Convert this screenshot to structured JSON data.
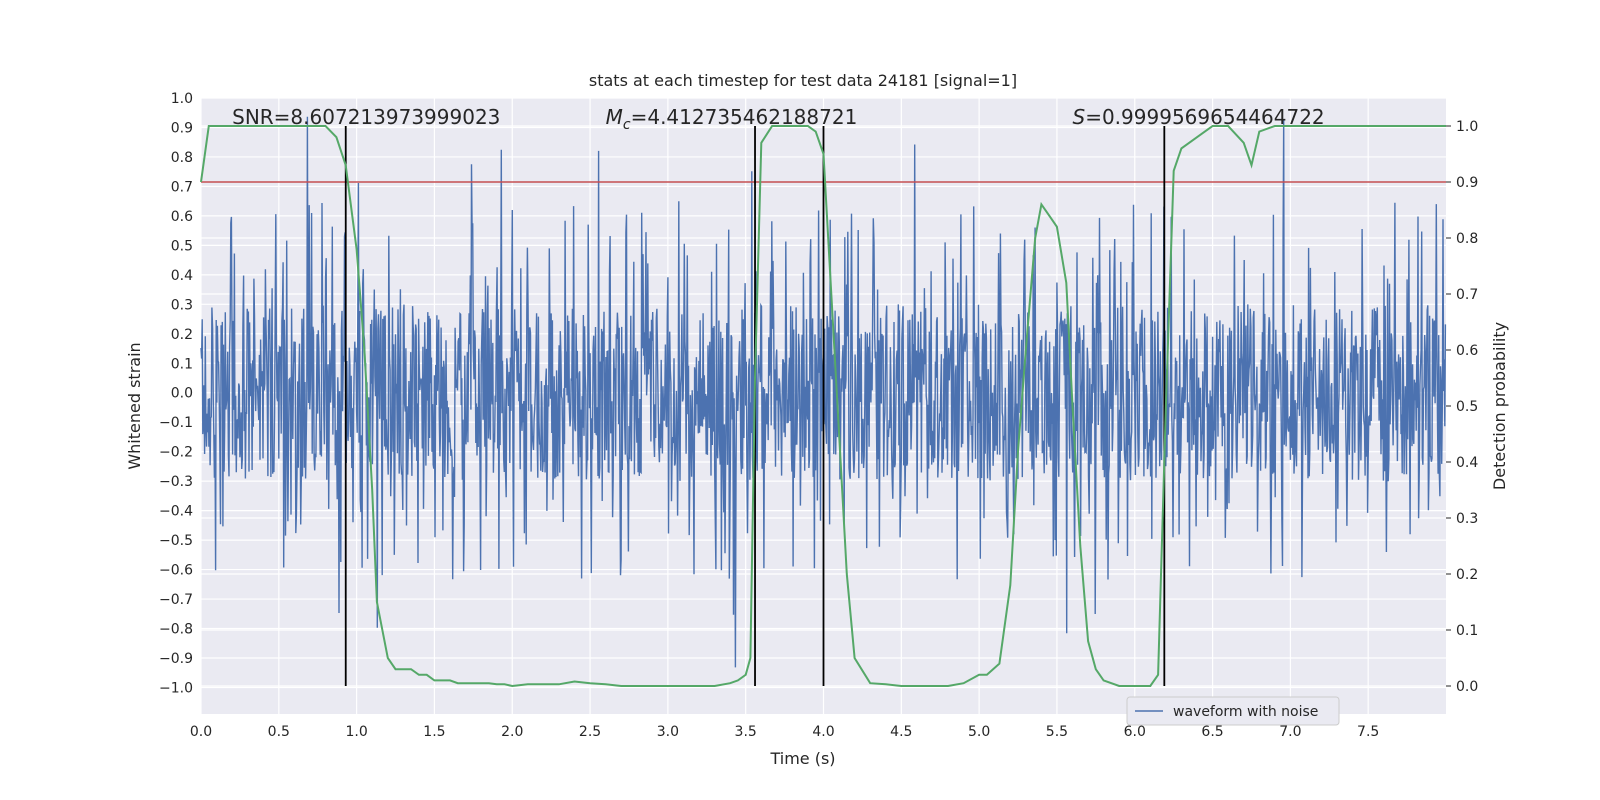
{
  "chart_data": {
    "type": "line",
    "title": "stats at each timestep for test data 24181 [signal=1]",
    "xlabel": "Time (s)",
    "ylabel": "Whitened strain",
    "y2label": "Detection probability",
    "xlim": [
      0.0,
      8.0
    ],
    "ylim": [
      -1.09,
      1.0
    ],
    "y2lim": [
      -0.05,
      1.05
    ],
    "xticks": [
      "0.0",
      "0.5",
      "1.0",
      "1.5",
      "2.0",
      "2.5",
      "3.0",
      "3.5",
      "4.0",
      "4.5",
      "5.0",
      "5.5",
      "6.0",
      "6.5",
      "7.0",
      "7.5"
    ],
    "yticks": [
      "1.0",
      "0.9",
      "0.8",
      "0.7",
      "0.6",
      "0.5",
      "0.4",
      "0.3",
      "0.2",
      "0.1",
      "0.0",
      "−0.1",
      "−0.2",
      "−0.3",
      "−0.4",
      "−0.5",
      "−0.6",
      "−0.7",
      "−0.8",
      "−0.9",
      "−1.0"
    ],
    "y2ticks": [
      "1.0",
      "0.9",
      "0.8",
      "0.7",
      "0.6",
      "0.5",
      "0.4",
      "0.3",
      "0.2",
      "0.1",
      "0.0"
    ],
    "grid": true,
    "legend": {
      "label": "waveform with noise",
      "placement": "lower-right"
    },
    "annotations": [
      {
        "text": "SNR=8.607213973999023",
        "x": 0.2
      },
      {
        "text": "M_c=4.412735462188721",
        "x": 2.6
      },
      {
        "text": "S=0.9999569654464722",
        "x": 5.6
      }
    ],
    "threshold": {
      "y2": 0.9,
      "color": "#c44e52"
    },
    "vlines": [
      {
        "x": 0.93,
        "y2_range": [
          0.0,
          1.0
        ]
      },
      {
        "x": 3.56,
        "y2_range": [
          0.0,
          1.0
        ]
      },
      {
        "x": 4.0,
        "y2_range": [
          0.0,
          1.0
        ]
      },
      {
        "x": 6.19,
        "y2_range": [
          0.0,
          1.0
        ]
      }
    ],
    "waveform": {
      "name": "waveform with noise",
      "color": "#4c72b0",
      "samples": 2048,
      "core_amplitude": 0.3,
      "seed": 24181
    },
    "probability": {
      "color": "#55a868",
      "x": [
        0.0,
        0.05,
        0.1,
        0.2,
        0.3,
        0.5,
        0.7,
        0.8,
        0.87,
        0.93,
        1.0,
        1.05,
        1.1,
        1.13,
        1.2,
        1.25,
        1.3,
        1.35,
        1.4,
        1.45,
        1.5,
        1.55,
        1.6,
        1.65,
        1.7,
        1.75,
        1.8,
        1.85,
        1.9,
        1.95,
        2.0,
        2.1,
        2.2,
        2.3,
        2.4,
        2.5,
        2.6,
        2.7,
        2.8,
        2.9,
        3.0,
        3.1,
        3.2,
        3.3,
        3.4,
        3.45,
        3.5,
        3.53,
        3.56,
        3.6,
        3.67,
        3.75,
        3.9,
        3.95,
        4.0,
        4.05,
        4.1,
        4.15,
        4.2,
        4.3,
        4.4,
        4.5,
        4.6,
        4.7,
        4.8,
        4.9,
        5.0,
        5.05,
        5.13,
        5.2,
        5.25,
        5.3,
        5.36,
        5.4,
        5.45,
        5.5,
        5.56,
        5.6,
        5.65,
        5.7,
        5.75,
        5.8,
        5.9,
        6.0,
        6.1,
        6.15,
        6.2,
        6.25,
        6.3,
        6.4,
        6.5,
        6.55,
        6.6,
        6.7,
        6.75,
        6.8,
        6.9,
        7.0,
        7.5,
        8.0
      ],
      "y": [
        0.9,
        1.0,
        1.0,
        1.0,
        1.0,
        1.0,
        1.0,
        1.0,
        0.98,
        0.93,
        0.78,
        0.6,
        0.35,
        0.15,
        0.05,
        0.03,
        0.03,
        0.03,
        0.02,
        0.02,
        0.01,
        0.01,
        0.01,
        0.005,
        0.005,
        0.005,
        0.005,
        0.005,
        0.003,
        0.003,
        0.0,
        0.003,
        0.003,
        0.003,
        0.008,
        0.005,
        0.003,
        0.0,
        0.0,
        0.0,
        0.0,
        0.0,
        0.0,
        0.0,
        0.005,
        0.01,
        0.02,
        0.05,
        0.55,
        0.97,
        1.0,
        1.0,
        1.0,
        0.99,
        0.95,
        0.7,
        0.45,
        0.2,
        0.05,
        0.005,
        0.003,
        0.0,
        0.0,
        0.0,
        0.0,
        0.005,
        0.02,
        0.02,
        0.04,
        0.18,
        0.42,
        0.6,
        0.8,
        0.86,
        0.84,
        0.82,
        0.72,
        0.5,
        0.25,
        0.08,
        0.03,
        0.01,
        0.0,
        0.0,
        0.0,
        0.02,
        0.5,
        0.92,
        0.96,
        0.98,
        1.0,
        1.0,
        1.0,
        0.97,
        0.93,
        0.99,
        1.0,
        1.0,
        1.0,
        1.0
      ]
    }
  }
}
